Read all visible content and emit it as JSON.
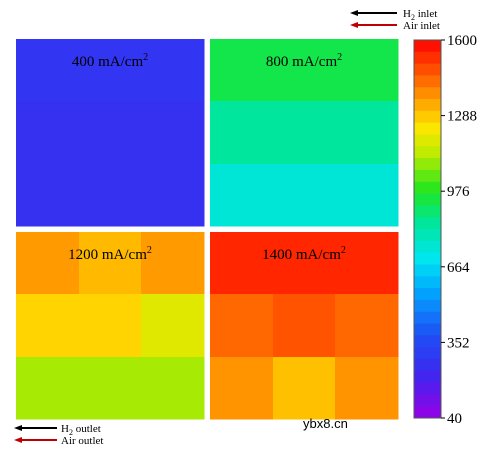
{
  "chart_data": {
    "type": "heatmap",
    "panels": [
      {
        "label_value": "400 mA/cm",
        "label_exp": "2",
        "rows": [
          [
            280,
            280,
            280
          ],
          [
            260,
            260,
            260
          ],
          [
            260,
            260,
            260
          ]
        ]
      },
      {
        "label_value": "800 mA/cm",
        "label_exp": "2",
        "rows": [
          [
            930,
            930,
            930
          ],
          [
            840,
            840,
            840
          ],
          [
            740,
            740,
            740
          ]
        ]
      },
      {
        "label_value": "1200 mA/cm",
        "label_exp": "2",
        "rows": [
          [
            1360,
            1310,
            1360
          ],
          [
            1270,
            1270,
            1190
          ],
          [
            1110,
            1110,
            1110
          ]
        ]
      },
      {
        "label_value": "1400 mA/cm",
        "label_exp": "2",
        "rows": [
          [
            1540,
            1540,
            1540
          ],
          [
            1440,
            1470,
            1440
          ],
          [
            1370,
            1300,
            1370
          ]
        ]
      }
    ],
    "colorbar": {
      "min": 40,
      "max": 1600,
      "ticks": [
        1600,
        1288,
        976,
        664,
        352,
        40
      ]
    },
    "legend": {
      "top": [
        {
          "pre": "H",
          "sub": "2",
          "post": " inlet",
          "color": "#000000"
        },
        {
          "pre": "Air inlet",
          "sub": "",
          "post": "",
          "color": "#c00000"
        }
      ],
      "bottom": [
        {
          "pre": "H",
          "sub": "2",
          "post": " outlet",
          "color": "#000000"
        },
        {
          "pre": "Air outlet",
          "sub": "",
          "post": "",
          "color": "#c00000"
        }
      ]
    }
  },
  "watermark": "ybx8.cn"
}
